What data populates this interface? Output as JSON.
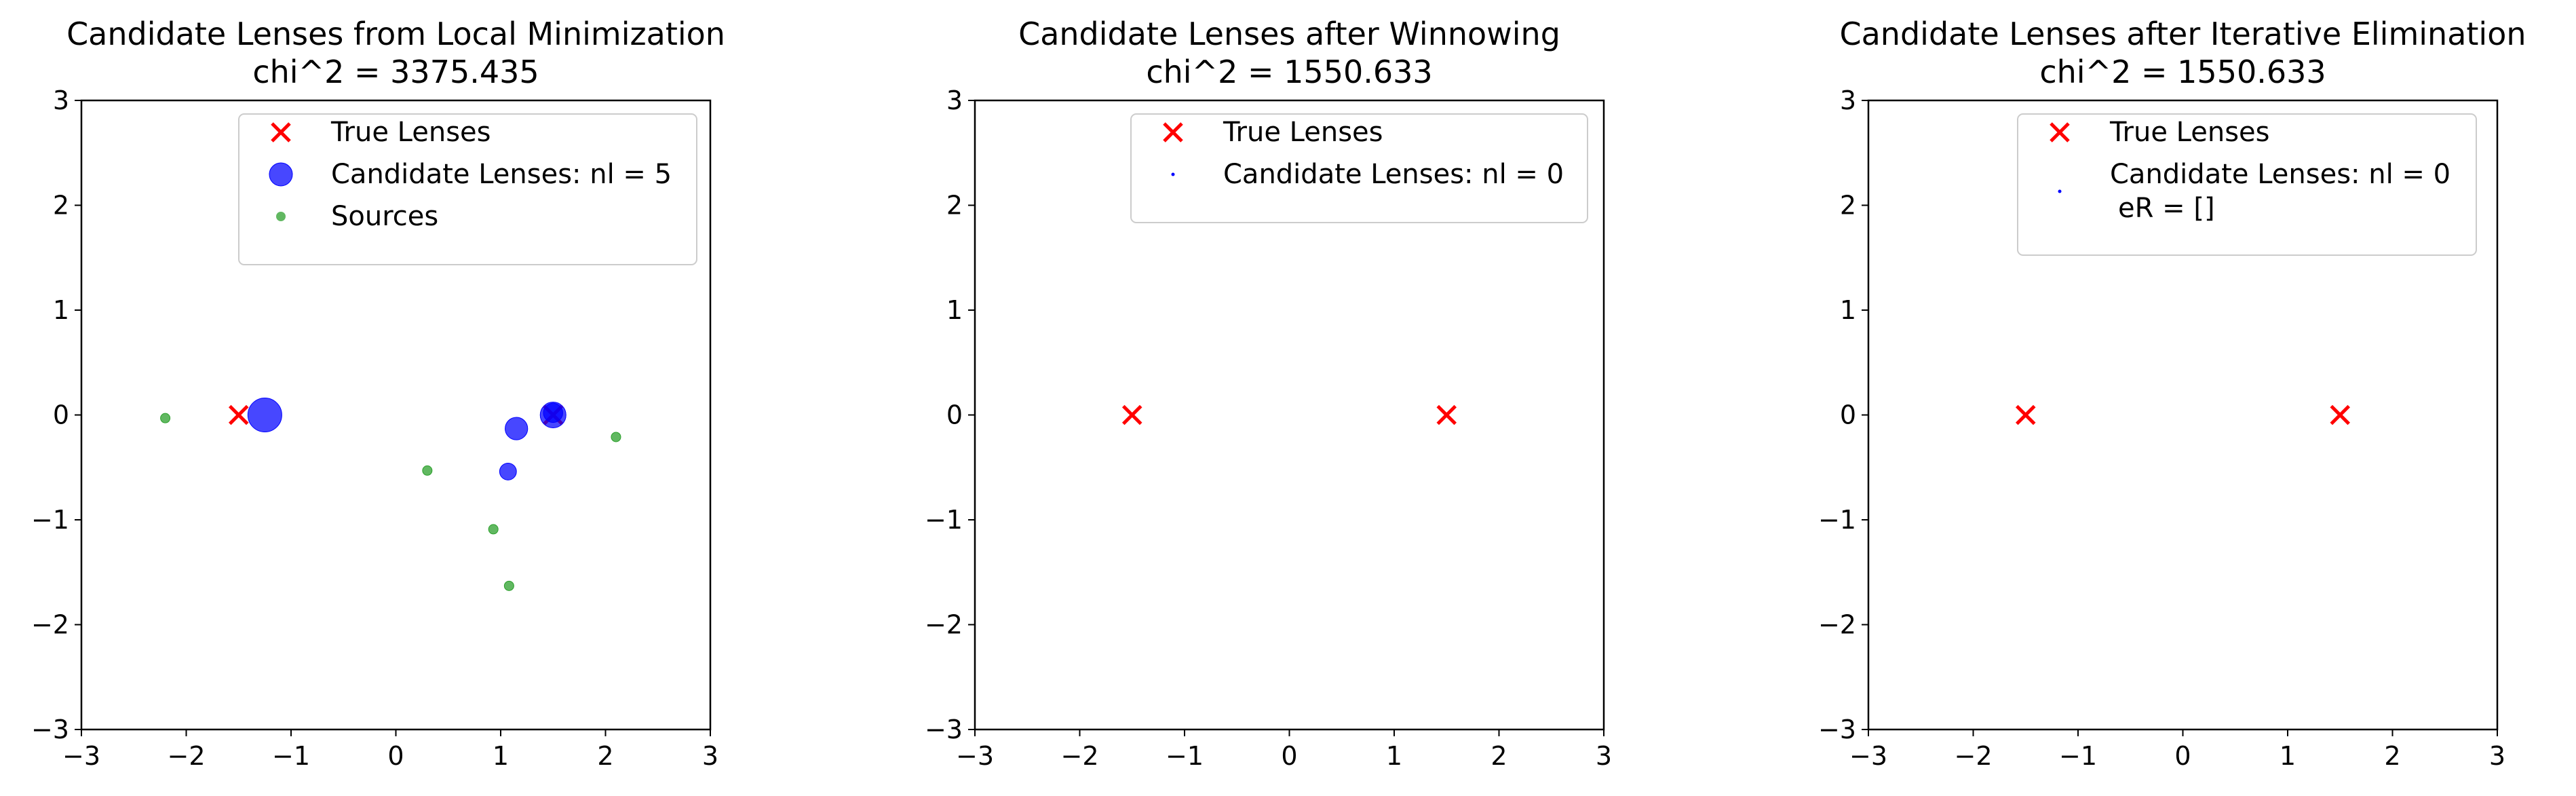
{
  "chart_data": [
    {
      "type": "scatter",
      "title": "Candidate Lenses from Local Minimization",
      "subtitle": "chi^2 = 3375.435",
      "xlim": [
        -3,
        3
      ],
      "ylim": [
        -3,
        3
      ],
      "xticks": [
        "−3",
        "−2",
        "−1",
        "0",
        "1",
        "2",
        "3"
      ],
      "yticks": [
        "−3",
        "−2",
        "−1",
        "0",
        "1",
        "2",
        "3"
      ],
      "grid": false,
      "legend_position": "upper right",
      "series": [
        {
          "name": "True Lenses",
          "marker": "x",
          "color": "#ff0000",
          "points": [
            {
              "x": -1.5,
              "y": 0.0
            },
            {
              "x": 1.5,
              "y": 0.0
            }
          ]
        },
        {
          "name": "Candidate Lenses: nl = 5",
          "marker": "circle",
          "color": "#0000ff",
          "points": [
            {
              "x": -1.25,
              "y": 0.0,
              "size": 3
            },
            {
              "x": 1.5,
              "y": 0.0,
              "size": 2
            },
            {
              "x": 1.15,
              "y": -0.13,
              "size": 1.6
            },
            {
              "x": 1.07,
              "y": -0.54,
              "size": 0.9
            },
            {
              "x": 1.5,
              "y": 0.02,
              "size": 1.2
            }
          ]
        },
        {
          "name": "Sources",
          "marker": "circle",
          "color": "#2ca02c",
          "points": [
            {
              "x": -2.2,
              "y": -0.03
            },
            {
              "x": 0.3,
              "y": -0.53
            },
            {
              "x": 0.93,
              "y": -1.09
            },
            {
              "x": 1.08,
              "y": -1.63
            },
            {
              "x": 2.1,
              "y": -0.21
            }
          ]
        }
      ]
    },
    {
      "type": "scatter",
      "title": "Candidate Lenses after Winnowing",
      "subtitle": "chi^2 = 1550.633",
      "xlim": [
        -3,
        3
      ],
      "ylim": [
        -3,
        3
      ],
      "xticks": [
        "−3",
        "−2",
        "−1",
        "0",
        "1",
        "2",
        "3"
      ],
      "yticks": [
        "−3",
        "−2",
        "−1",
        "0",
        "1",
        "2",
        "3"
      ],
      "grid": false,
      "legend_position": "upper right",
      "series": [
        {
          "name": "True Lenses",
          "marker": "x",
          "color": "#ff0000",
          "points": [
            {
              "x": -1.5,
              "y": 0.0
            },
            {
              "x": 1.5,
              "y": 0.0
            }
          ]
        },
        {
          "name": "Candidate Lenses: nl = 0",
          "marker": "circle",
          "color": "#0000ff",
          "points": []
        }
      ]
    },
    {
      "type": "scatter",
      "title": "Candidate Lenses after Iterative Elimination",
      "subtitle": "chi^2 = 1550.633",
      "xlim": [
        -3,
        3
      ],
      "ylim": [
        -3,
        3
      ],
      "xticks": [
        "−3",
        "−2",
        "−1",
        "0",
        "1",
        "2",
        "3"
      ],
      "yticks": [
        "−3",
        "−2",
        "−1",
        "0",
        "1",
        "2",
        "3"
      ],
      "grid": false,
      "legend_position": "upper right",
      "series": [
        {
          "name": "True Lenses",
          "marker": "x",
          "color": "#ff0000",
          "points": [
            {
              "x": -1.5,
              "y": 0.0
            },
            {
              "x": 1.5,
              "y": 0.0
            }
          ]
        },
        {
          "name": "Candidate Lenses: nl = 0",
          "name_line2": "eR = []",
          "marker": "circle",
          "color": "#0000ff",
          "points": []
        }
      ]
    }
  ]
}
